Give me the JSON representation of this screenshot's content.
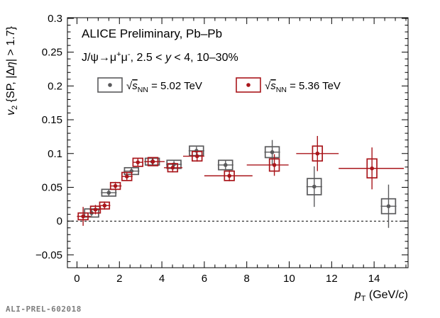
{
  "figure_id": "ALI-PREL-602018",
  "annotations": {
    "line1": "ALICE Preliminary, Pb–Pb",
    "line2": "J/ψ→μ⁺μ⁻, 2.5 < y < 4, 10–30%",
    "line2_parts": [
      {
        "t": "J/ψ→μ"
      },
      {
        "t": "+",
        "sup": true
      },
      {
        "t": "μ"
      },
      {
        "t": "-",
        "sup": true
      },
      {
        "t": ", 2.5 < "
      },
      {
        "t": "y",
        "i": true
      },
      {
        "t": " < 4, 10–30%"
      }
    ]
  },
  "chart_data": {
    "type": "scatter",
    "title": "",
    "xlabel": "pT (GeV/c)",
    "ylabel": "v2 {SP, |Δη| > 1.7}",
    "xlabel_parts": [
      {
        "t": "p",
        "i": true
      },
      {
        "t": "T",
        "sub": true
      },
      {
        "t": " (GeV/"
      },
      {
        "t": "c",
        "i": true
      },
      {
        "t": ")"
      }
    ],
    "ylabel_parts": [
      {
        "t": "v",
        "i": true
      },
      {
        "t": "2",
        "sub": true
      },
      {
        "t": " {SP, |Δ"
      },
      {
        "t": "η",
        "i": true
      },
      {
        "t": "| > 1.7}"
      }
    ],
    "xlim": [
      -0.45,
      15.6
    ],
    "ylim": [
      -0.069,
      0.301
    ],
    "x_major_ticks": [
      0,
      2,
      4,
      6,
      8,
      10,
      12,
      14
    ],
    "x_tick_labels": [
      "0",
      "2",
      "4",
      "6",
      "8",
      "10",
      "12",
      "14"
    ],
    "x_minor_step": 0.5,
    "y_major_ticks": [
      -0.05,
      0,
      0.05,
      0.1,
      0.15,
      0.2,
      0.25,
      0.3
    ],
    "y_tick_labels": [
      "−0.05",
      "0",
      "0.05",
      "0.1",
      "0.15",
      "0.2",
      "0.25",
      "0.3"
    ],
    "y_minor_step": 0.01,
    "zero_line_y": 0,
    "grid": false,
    "legend_position": "top-inside",
    "legend": [
      {
        "label": "√sNN = 5.02 TeV",
        "label_parts": [
          {
            "t": "√"
          },
          {
            "t": "s",
            "i": true,
            "ol": true
          },
          {
            "t": "NN",
            "sub": true
          },
          {
            "t": " = 5.02 TeV"
          }
        ],
        "color": "#5a5a5c"
      },
      {
        "label": "√sNN = 5.36 TeV",
        "label_parts": [
          {
            "t": "√"
          },
          {
            "t": "s",
            "i": true,
            "ol": true
          },
          {
            "t": "NN",
            "sub": true
          },
          {
            "t": " = 5.36 TeV"
          }
        ],
        "color": "#a9161b"
      }
    ],
    "series": [
      {
        "name": "Pb–Pb √sNN = 5.02 TeV",
        "color": "#5a5a5c",
        "box_half_width_gev": 0.33,
        "points": [
          {
            "x": 0.69,
            "y": 0.012,
            "stat": 0.005,
            "sys": 0.006,
            "xlo": 0.32,
            "xhi": 1.06
          },
          {
            "x": 1.5,
            "y": 0.042,
            "stat": 0.005,
            "sys": 0.005,
            "xlo": 1.13,
            "xhi": 1.87
          },
          {
            "x": 2.57,
            "y": 0.074,
            "stat": 0.005,
            "sys": 0.005,
            "xlo": 2.2,
            "xhi": 2.94
          },
          {
            "x": 3.55,
            "y": 0.088,
            "stat": 0.005,
            "sys": 0.005,
            "xlo": 3.18,
            "xhi": 3.92
          },
          {
            "x": 4.57,
            "y": 0.084,
            "stat": 0.005,
            "sys": 0.006,
            "xlo": 4.2,
            "xhi": 4.94
          },
          {
            "x": 5.63,
            "y": 0.104,
            "stat": 0.006,
            "sys": 0.007,
            "xlo": 5.26,
            "xhi": 6.0
          },
          {
            "x": 7.0,
            "y": 0.083,
            "stat": 0.007,
            "sys": 0.007,
            "xlo": 6.63,
            "xhi": 7.37
          },
          {
            "x": 9.2,
            "y": 0.102,
            "stat": 0.018,
            "sys": 0.008,
            "xlo": 8.83,
            "xhi": 9.57
          },
          {
            "x": 11.18,
            "y": 0.051,
            "stat": 0.03,
            "sys": 0.012,
            "xlo": 10.81,
            "xhi": 11.55
          },
          {
            "x": 14.68,
            "y": 0.022,
            "stat": 0.032,
            "sys": 0.011,
            "xlo": 14.31,
            "xhi": 15.05
          }
        ]
      },
      {
        "name": "Pb–Pb √sNN = 5.36 TeV",
        "color": "#a9161b",
        "box_half_width_gev": 0.23,
        "points": [
          {
            "x": 0.29,
            "y": 0.007,
            "stat": 0.014,
            "sys": 0.005,
            "xlo": 0.0,
            "xhi": 0.65
          },
          {
            "x": 0.87,
            "y": 0.017,
            "stat": 0.007,
            "sys": 0.005,
            "xlo": 0.6,
            "xhi": 1.1
          },
          {
            "x": 1.3,
            "y": 0.023,
            "stat": 0.006,
            "sys": 0.005,
            "xlo": 1.1,
            "xhi": 1.57
          },
          {
            "x": 1.81,
            "y": 0.052,
            "stat": 0.006,
            "sys": 0.005,
            "xlo": 1.57,
            "xhi": 2.1
          },
          {
            "x": 2.35,
            "y": 0.066,
            "stat": 0.006,
            "sys": 0.006,
            "xlo": 2.1,
            "xhi": 2.62
          },
          {
            "x": 2.87,
            "y": 0.087,
            "stat": 0.006,
            "sys": 0.006,
            "xlo": 2.62,
            "xhi": 3.12
          },
          {
            "x": 3.58,
            "y": 0.088,
            "stat": 0.006,
            "sys": 0.006,
            "xlo": 3.17,
            "xhi": 4.13
          },
          {
            "x": 4.51,
            "y": 0.079,
            "stat": 0.007,
            "sys": 0.006,
            "xlo": 4.1,
            "xhi": 4.97
          },
          {
            "x": 5.66,
            "y": 0.096,
            "stat": 0.008,
            "sys": 0.007,
            "xlo": 5.0,
            "xhi": 6.0
          },
          {
            "x": 7.18,
            "y": 0.067,
            "stat": 0.008,
            "sys": 0.007,
            "xlo": 6.0,
            "xhi": 8.27
          },
          {
            "x": 9.3,
            "y": 0.083,
            "stat": 0.016,
            "sys": 0.009,
            "xlo": 8.0,
            "xhi": 9.97
          },
          {
            "x": 11.33,
            "y": 0.1,
            "stat": 0.026,
            "sys": 0.011,
            "xlo": 10.33,
            "xhi": 12.33
          },
          {
            "x": 13.9,
            "y": 0.078,
            "stat": 0.031,
            "sys": 0.014,
            "xlo": 12.33,
            "xhi": 15.4
          }
        ]
      }
    ]
  }
}
